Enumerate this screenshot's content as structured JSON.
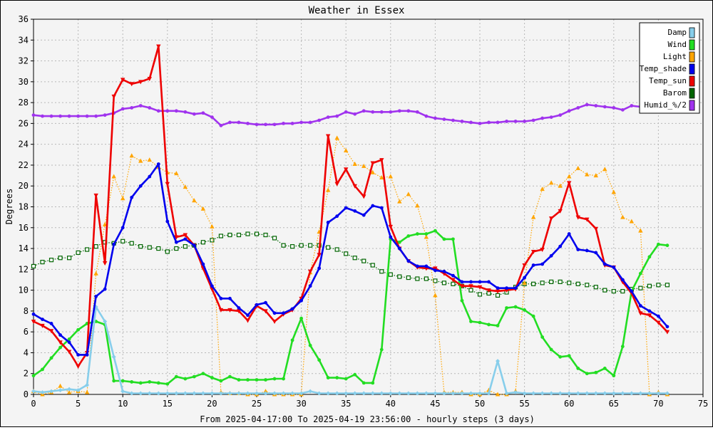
{
  "chart_data": {
    "type": "line",
    "title": "Weather in Essex",
    "xlabel": "From 2025-04-17:00 To 2025-04-19 23:56:00 - hourly steps (3 days)",
    "ylabel": "Degrees",
    "xlim": [
      0,
      75
    ],
    "ylim": [
      0,
      36
    ],
    "x_ticks": [
      0,
      5,
      10,
      15,
      20,
      25,
      30,
      35,
      40,
      45,
      50,
      55,
      60,
      65,
      70,
      75
    ],
    "y_ticks": [
      0,
      2,
      4,
      6,
      8,
      10,
      12,
      14,
      16,
      18,
      20,
      22,
      24,
      26,
      28,
      30,
      32,
      34,
      36
    ],
    "grid": true,
    "legend_position": "top-right",
    "series": [
      {
        "name": "Damp",
        "color": "#87ceeb",
        "marker": "diamond",
        "style": "solid",
        "values": [
          0.3,
          0.2,
          0.3,
          0.4,
          0.5,
          0.4,
          0.9,
          8.4,
          7.0,
          3.6,
          0.3,
          0.1,
          0.1,
          0.1,
          0.1,
          0.1,
          0.1,
          0.1,
          0.1,
          0.1,
          0.1,
          0.1,
          0.1,
          0.1,
          0.1,
          0.1,
          0.1,
          0.1,
          0.1,
          0.1,
          0.1,
          0.3,
          0.1,
          0.1,
          0.1,
          0.1,
          0.1,
          0.1,
          0.1,
          0.1,
          0.1,
          0.1,
          0.1,
          0.1,
          0.1,
          0.1,
          0.1,
          0.1,
          0.1,
          0.1,
          0.1,
          0.1,
          3.2,
          0.1,
          0.2,
          0.1,
          0.1,
          0.1,
          0.1,
          0.1,
          0.1,
          0.1,
          0.1,
          0.1,
          0.1,
          0.1,
          0.1,
          0.1,
          0.1,
          0.1,
          0.1,
          0.1
        ]
      },
      {
        "name": "Wind",
        "color": "#22dd22",
        "marker": "circle",
        "style": "solid",
        "values": [
          1.8,
          2.4,
          3.5,
          4.5,
          5.3,
          6.2,
          6.8,
          7.0,
          6.7,
          1.3,
          1.3,
          1.2,
          1.1,
          1.2,
          1.1,
          1.0,
          1.7,
          1.5,
          1.7,
          2.0,
          1.6,
          1.3,
          1.7,
          1.4,
          1.4,
          1.4,
          1.4,
          1.5,
          1.5,
          5.2,
          7.3,
          4.7,
          3.3,
          1.6,
          1.6,
          1.5,
          1.9,
          1.1,
          1.1,
          4.3,
          14.9,
          14.6,
          15.2,
          15.4,
          15.4,
          15.7,
          14.9,
          14.9,
          9.0,
          7.0,
          6.9,
          6.7,
          6.6,
          8.3,
          8.4,
          8.1,
          7.5,
          5.5,
          4.3,
          3.6,
          3.7,
          2.5,
          2.0,
          2.1,
          2.5,
          1.8,
          4.6,
          9.9,
          11.6,
          13.2,
          14.4,
          14.3
        ]
      },
      {
        "name": "Light",
        "color": "#ffa500",
        "marker": "triangle",
        "style": "dotted",
        "values": [
          0.3,
          0.0,
          0.2,
          0.8,
          0.2,
          0.3,
          0.2,
          11.6,
          16.3,
          20.9,
          18.8,
          22.9,
          22.4,
          22.5,
          21.8,
          21.3,
          21.2,
          19.9,
          18.6,
          17.8,
          16.1,
          0.2,
          0.1,
          0.1,
          0.0,
          0.0,
          0.3,
          0.0,
          0.0,
          0.0,
          0.0,
          11.7,
          15.6,
          19.6,
          24.6,
          23.4,
          22.1,
          21.9,
          21.3,
          20.8,
          20.9,
          18.5,
          19.2,
          18.1,
          15.1,
          9.5,
          0.2,
          0.2,
          0.2,
          0.0,
          0.0,
          0.4,
          0.0,
          0.0,
          0.3,
          10.7,
          17.0,
          19.7,
          20.3,
          20.0,
          20.9,
          21.7,
          21.1,
          21.0,
          21.6,
          19.4,
          17.0,
          16.6,
          15.7,
          0.0,
          0.2,
          0.0
        ]
      },
      {
        "name": "Temp_shade",
        "color": "#0000ee",
        "marker": "circle",
        "style": "solid",
        "values": [
          7.7,
          7.2,
          6.8,
          5.7,
          5.0,
          3.8,
          3.8,
          9.4,
          10.1,
          14.4,
          16.0,
          18.9,
          20.0,
          20.9,
          22.1,
          16.6,
          14.6,
          14.9,
          14.3,
          12.5,
          10.4,
          9.2,
          9.2,
          8.3,
          7.6,
          8.6,
          8.8,
          7.8,
          7.8,
          8.2,
          9.0,
          10.4,
          12.1,
          16.5,
          17.1,
          17.9,
          17.6,
          17.2,
          18.1,
          17.9,
          15.1,
          14.0,
          12.8,
          12.3,
          12.3,
          11.9,
          11.8,
          11.4,
          10.8,
          10.8,
          10.8,
          10.8,
          10.2,
          10.2,
          10.2,
          11.2,
          12.4,
          12.5,
          13.3,
          14.2,
          15.4,
          13.9,
          13.8,
          13.6,
          12.5,
          12.2,
          11.0,
          9.9,
          8.5,
          8.0,
          7.5,
          6.5
        ]
      },
      {
        "name": "Temp_sun",
        "color": "#ee0000",
        "marker": "triangle-down",
        "style": "solid",
        "values": [
          7.0,
          6.6,
          6.1,
          5.0,
          4.1,
          2.7,
          4.0,
          19.1,
          12.6,
          28.6,
          30.2,
          29.8,
          30.0,
          30.3,
          33.4,
          20.2,
          15.1,
          15.3,
          14.3,
          12.1,
          10.1,
          8.1,
          8.1,
          8.0,
          7.1,
          8.5,
          8.0,
          7.0,
          7.7,
          8.1,
          9.2,
          11.8,
          13.4,
          24.8,
          20.2,
          21.6,
          20.0,
          19.0,
          22.2,
          22.5,
          16.1,
          14.0,
          12.8,
          12.2,
          12.1,
          12.1,
          11.6,
          11.0,
          10.4,
          10.4,
          10.3,
          10.0,
          9.9,
          10.0,
          10.1,
          12.4,
          13.7,
          13.9,
          16.9,
          17.6,
          20.3,
          17.0,
          16.8,
          15.9,
          12.4,
          12.2,
          10.8,
          9.7,
          7.8,
          7.6,
          6.9,
          6.0
        ]
      },
      {
        "name": "Barom",
        "color": "#006400",
        "marker": "square",
        "style": "dotted",
        "values": [
          12.3,
          12.7,
          12.9,
          13.1,
          13.1,
          13.6,
          13.9,
          14.2,
          14.6,
          14.5,
          14.7,
          14.5,
          14.2,
          14.1,
          14.0,
          13.7,
          14.0,
          14.2,
          14.3,
          14.6,
          14.8,
          15.2,
          15.3,
          15.3,
          15.4,
          15.4,
          15.3,
          15.0,
          14.3,
          14.2,
          14.3,
          14.3,
          14.3,
          14.1,
          13.9,
          13.5,
          13.1,
          12.8,
          12.4,
          11.8,
          11.5,
          11.3,
          11.2,
          11.1,
          11.1,
          10.9,
          10.7,
          10.6,
          10.4,
          10.0,
          9.6,
          9.7,
          9.5,
          9.8,
          10.3,
          10.6,
          10.6,
          10.7,
          10.8,
          10.8,
          10.7,
          10.6,
          10.5,
          10.3,
          10.0,
          9.9,
          9.9,
          10.1,
          10.2,
          10.4,
          10.5,
          10.5
        ]
      },
      {
        "name": "Humid_%/2",
        "color": "#a033ee",
        "marker": "circle",
        "style": "solid",
        "values": [
          26.8,
          26.7,
          26.7,
          26.7,
          26.7,
          26.7,
          26.7,
          26.7,
          26.8,
          27.0,
          27.4,
          27.5,
          27.7,
          27.5,
          27.2,
          27.2,
          27.2,
          27.1,
          26.9,
          27.0,
          26.6,
          25.8,
          26.1,
          26.1,
          26.0,
          25.9,
          25.9,
          25.9,
          26.0,
          26.0,
          26.1,
          26.1,
          26.3,
          26.6,
          26.7,
          27.1,
          26.9,
          27.2,
          27.1,
          27.1,
          27.1,
          27.2,
          27.2,
          27.1,
          26.7,
          26.5,
          26.4,
          26.3,
          26.2,
          26.1,
          26.0,
          26.1,
          26.1,
          26.2,
          26.2,
          26.2,
          26.3,
          26.5,
          26.6,
          26.8,
          27.2,
          27.5,
          27.8,
          27.7,
          27.6,
          27.5,
          27.3,
          27.7,
          27.6,
          27.4,
          27.2,
          27.2
        ]
      }
    ]
  }
}
